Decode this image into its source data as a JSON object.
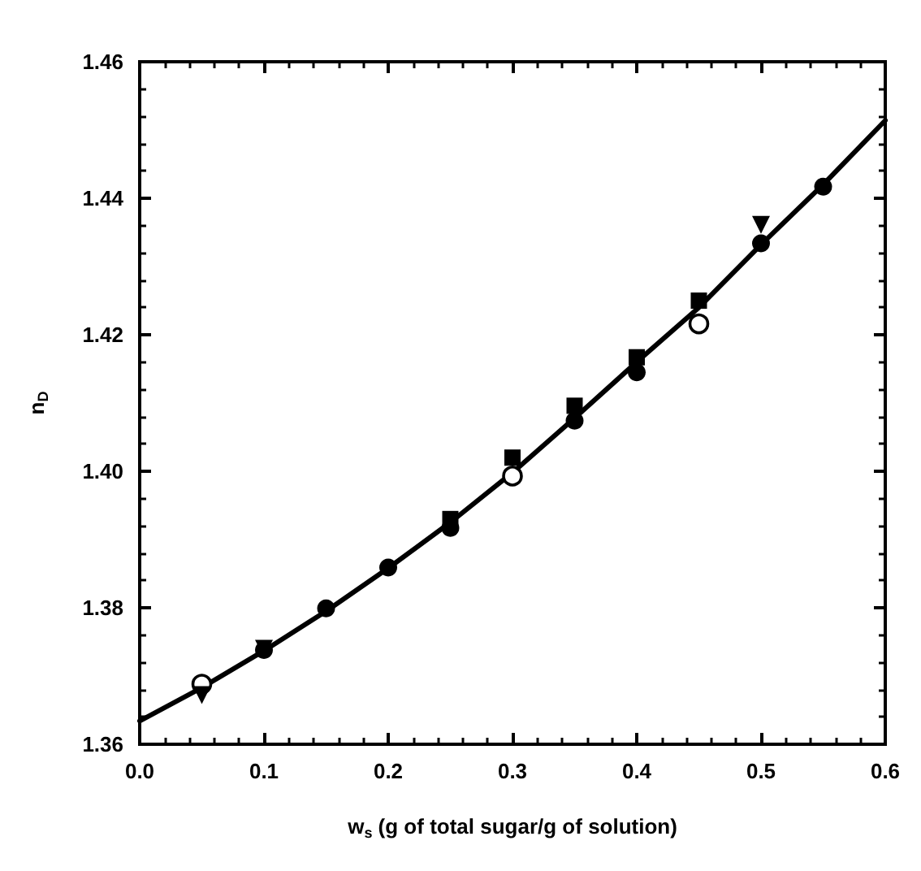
{
  "chart_data": {
    "type": "scatter",
    "xlabel": "w$_{s}$ (g of total sugar/g of solution)",
    "ylabel": "n$_{D}$",
    "xlim": [
      0,
      0.6
    ],
    "xticks": [
      {
        "value": 0,
        "label": "0.0"
      },
      0.1,
      0.2,
      0.3,
      0.4,
      0.5,
      0.6
    ],
    "ylim": [
      1.36,
      1.46
    ],
    "yticks": [
      1.36,
      1.38,
      {
        "value": 1.4,
        "label": "1.40"
      },
      1.42,
      1.44,
      1.46
    ],
    "grid": false,
    "series": [
      {
        "type": "line",
        "marker": "none",
        "line_style": "solid",
        "color": "#000000",
        "x": [
          0,
          0.05,
          0.1,
          0.15,
          0.2,
          0.25,
          0.3,
          0.35,
          0.4,
          0.45,
          0.5,
          0.55,
          0.6
        ],
        "values": [
          1.3634,
          1.3683,
          1.3737,
          1.3795,
          1.3858,
          1.3925,
          1.3998,
          1.4078,
          1.416,
          1.424,
          1.4332,
          1.442,
          1.4514
        ]
      },
      {
        "marker": "circle",
        "color": "#000000",
        "x": [
          0.1,
          0.15,
          0.2,
          0.25,
          0.3,
          0.35,
          0.4,
          0.45,
          0.5,
          0.55
        ],
        "values": [
          1.3738,
          1.3799,
          1.3859,
          1.3917,
          null,
          1.4074,
          1.4145,
          null,
          1.4334,
          1.4417
        ]
      },
      {
        "marker": "circle",
        "color": "#ffffff",
        "x": [
          0.05,
          0.3,
          0.45
        ],
        "values": [
          1.3688,
          1.3993,
          1.4216
        ]
      },
      {
        "marker": "triangle",
        "color": "#000000",
        "x": [
          0.05,
          0.1,
          0.5
        ],
        "values": [
          1.3672,
          1.374,
          1.4361
        ]
      },
      {
        "marker": "square",
        "color": "#000000",
        "x": [
          0.25,
          0.3,
          0.35,
          0.4,
          0.45
        ],
        "values": [
          1.393,
          1.402,
          1.4096,
          1.4167,
          1.425
        ]
      }
    ]
  }
}
